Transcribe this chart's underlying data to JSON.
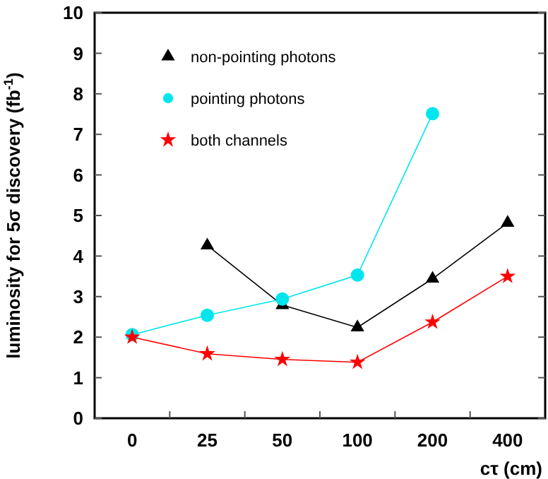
{
  "chart_data": {
    "type": "line",
    "xlabel": "cτ (cm)",
    "ylabel": "luminosity for 5σ discovery (fb$^{-1}$)",
    "categories": [
      "0",
      "25",
      "50",
      "100",
      "200",
      "400"
    ],
    "ylim": [
      0,
      10
    ],
    "yticks": [
      0,
      1,
      2,
      3,
      4,
      5,
      6,
      7,
      8,
      9,
      10
    ],
    "legend": "top left",
    "grid": false,
    "series": [
      {
        "name": "non-pointing photons",
        "color": "#000000",
        "marker": "triangle",
        "values": [
          null,
          4.26,
          2.79,
          2.24,
          3.44,
          4.82
        ]
      },
      {
        "name": "pointing photons",
        "color": "#00e5ee",
        "marker": "circle",
        "values": [
          2.06,
          2.54,
          2.94,
          3.53,
          7.51,
          null
        ]
      },
      {
        "name": "both channels",
        "color": "#ff0000",
        "marker": "star",
        "values": [
          2.0,
          1.59,
          1.45,
          1.38,
          2.37,
          3.5
        ]
      }
    ]
  }
}
